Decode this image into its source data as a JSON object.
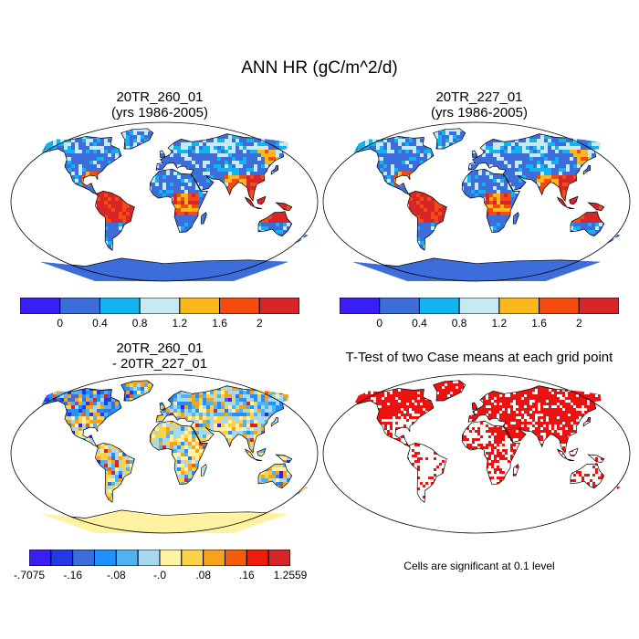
{
  "main_title": "ANN HR (gC/m^2/d)",
  "panels": [
    {
      "title": "20TR_260_01",
      "subtitle": "(yrs 1986-2005)"
    },
    {
      "title": "20TR_227_01",
      "subtitle": "(yrs 1986-2005)"
    },
    {
      "title": "20TR_260_01",
      "subtitle": "- 20TR_227_01"
    },
    {
      "title": "T-Test of two Case means at each grid point",
      "subtitle": ""
    }
  ],
  "colorbar_top": {
    "colors": [
      "#3a1ff5",
      "#3c6ddb",
      "#10b4ee",
      "#c7e9f4",
      "#fbb81c",
      "#f54b0f",
      "#d6262a"
    ],
    "labels": [
      "0",
      "0.4",
      "0.8",
      "1.2",
      "1.6",
      "2"
    ]
  },
  "colorbar_diff": {
    "colors": [
      "#3a1ff5",
      "#2438e6",
      "#3c6ddb",
      "#1e90ff",
      "#4cb4f0",
      "#a6d8f2",
      "#fff2a0",
      "#fbd24a",
      "#f7a21a",
      "#f55c0c",
      "#ee1c0c",
      "#d6262a"
    ],
    "labels": [
      "-.7075",
      "-.16",
      "-.08",
      "-.0",
      ".08",
      ".16",
      "1.2559"
    ]
  },
  "footnote": "Cells are significant at 0.1 level",
  "colors": {
    "ocean_bg": "#ffffff",
    "antarctica_abs": "#3c6ddb",
    "antarctica_diff": "#fff2a0",
    "ttest": "#ee1111"
  }
}
